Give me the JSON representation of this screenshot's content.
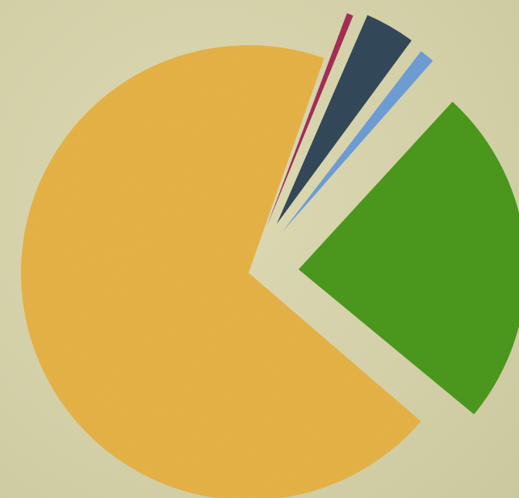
{
  "chart_data": {
    "type": "pie",
    "exploded": true,
    "grid": false,
    "legend": "none",
    "slices": [
      {
        "value": 69.4,
        "color": "#e7b447"
      },
      {
        "value": 24.5,
        "color": "#4c9a1c"
      },
      {
        "value": 1.4,
        "color": "#6f9fd6"
      },
      {
        "value": 3.9,
        "color": "#34495a"
      },
      {
        "value": 0.8,
        "color": "#a52f57"
      }
    ]
  }
}
